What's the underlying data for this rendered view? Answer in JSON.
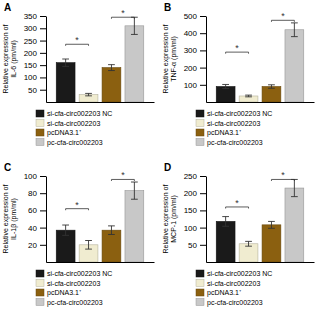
{
  "chart_data": [
    {
      "type": "bar",
      "title": "A",
      "ylabel": "Relative expression of\nIL-6 (pm/ml)",
      "categories": [
        null
      ],
      "series": [
        {
          "name": "si-cfa-circ002203 NC",
          "color": "#1a1a1a",
          "values": [
            160
          ],
          "errors": [
            15
          ]
        },
        {
          "name": "si-cfa-circ002203",
          "color": "#f0ecd0",
          "values": [
            30
          ],
          "errors": [
            5
          ]
        },
        {
          "name": "pcDNA3.1⁺",
          "color": "#8B6010",
          "values": [
            140
          ],
          "errors": [
            12
          ]
        },
        {
          "name": "pc-cfa-circ002203",
          "color": "#c8c8c8",
          "values": [
            310
          ],
          "errors": [
            35
          ]
        }
      ],
      "annotations": [
        {
          "text": "*",
          "y": 235,
          "between": [
            0,
            1
          ]
        },
        {
          "text": "*",
          "y": 345,
          "between": [
            2,
            3
          ]
        }
      ],
      "ylim": [
        0,
        350
      ],
      "yticks": [
        50,
        100,
        150,
        200,
        250,
        300,
        350
      ],
      "grid": false,
      "legend": "bottom"
    },
    {
      "type": "bar",
      "title": "B",
      "ylabel": "Relative expression of\nTNF-α (pm/ml)",
      "categories": [
        null
      ],
      "series": [
        {
          "name": "si-cfa-circ002203 NC",
          "color": "#1a1a1a",
          "values": [
            90
          ],
          "errors": [
            12
          ]
        },
        {
          "name": "si-cfa-circ002203",
          "color": "#f0ecd0",
          "values": [
            35
          ],
          "errors": [
            5
          ]
        },
        {
          "name": "pcDNA3.1⁺",
          "color": "#8B6010",
          "values": [
            90
          ],
          "errors": [
            10
          ]
        },
        {
          "name": "pc-cfa-circ002203",
          "color": "#c8c8c8",
          "values": [
            420
          ],
          "errors": [
            40
          ]
        }
      ],
      "annotations": [
        {
          "text": "*",
          "y": 290,
          "between": [
            0,
            1
          ]
        },
        {
          "text": "*",
          "y": 475,
          "between": [
            2,
            3
          ]
        }
      ],
      "ylim": [
        0,
        500
      ],
      "yticks": [
        100,
        200,
        300,
        400,
        500
      ],
      "grid": false,
      "legend": "bottom"
    },
    {
      "type": "bar",
      "title": "C",
      "ylabel": "Relative expression of\nIL-1β (pm/ml)",
      "categories": [
        null
      ],
      "series": [
        {
          "name": "si-cfa-circ002203 NC",
          "color": "#1a1a1a",
          "values": [
            37
          ],
          "errors": [
            6
          ]
        },
        {
          "name": "si-cfa-circ002203",
          "color": "#f0ecd0",
          "values": [
            20
          ],
          "errors": [
            5
          ]
        },
        {
          "name": "pcDNA3.1⁺",
          "color": "#8B6010",
          "values": [
            37
          ],
          "errors": [
            5
          ]
        },
        {
          "name": "pc-cfa-circ002203",
          "color": "#c8c8c8",
          "values": [
            83
          ],
          "errors": [
            10
          ]
        }
      ],
      "annotations": [
        {
          "text": "*",
          "y": 62,
          "between": [
            0,
            1
          ]
        },
        {
          "text": "*",
          "y": 96,
          "between": [
            2,
            3
          ]
        }
      ],
      "ylim": [
        0,
        100
      ],
      "yticks": [
        20,
        40,
        60,
        80,
        100
      ],
      "grid": false,
      "legend": "bottom"
    },
    {
      "type": "bar",
      "title": "D",
      "ylabel": "Relative expression of\nMCP-1 (pm/ml)",
      "categories": [
        null
      ],
      "series": [
        {
          "name": "si-cfa-circ002203 NC",
          "color": "#1a1a1a",
          "values": [
            118
          ],
          "errors": [
            14
          ]
        },
        {
          "name": "si-cfa-circ002203",
          "color": "#f0ecd0",
          "values": [
            53
          ],
          "errors": [
            7
          ]
        },
        {
          "name": "pcDNA3.1⁺",
          "color": "#8B6010",
          "values": [
            108
          ],
          "errors": [
            10
          ]
        },
        {
          "name": "pc-cfa-circ002203",
          "color": "#c8c8c8",
          "values": [
            215
          ],
          "errors": [
            25
          ]
        }
      ],
      "annotations": [
        {
          "text": "*",
          "y": 160,
          "between": [
            0,
            1
          ]
        },
        {
          "text": "*",
          "y": 240,
          "between": [
            2,
            3
          ]
        }
      ],
      "ylim": [
        0,
        250
      ],
      "yticks": [
        50,
        100,
        150,
        200,
        250
      ],
      "grid": false,
      "legend": "bottom"
    }
  ]
}
